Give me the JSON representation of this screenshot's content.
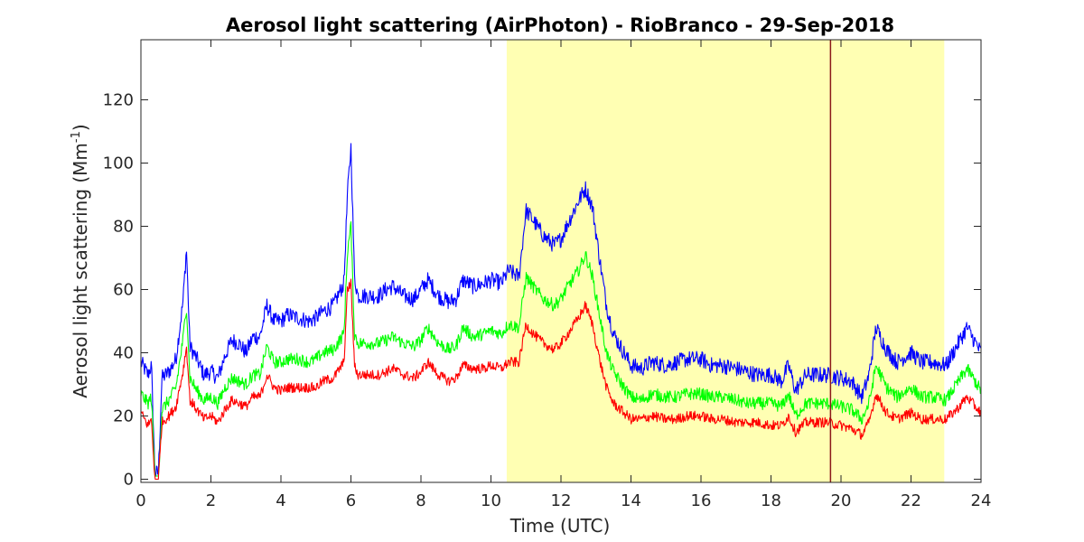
{
  "chart_data": {
    "type": "line",
    "title": "Aerosol light scattering (AirPhoton) - RioBranco - 29-Sep-2018",
    "xlabel": "Time (UTC)",
    "ylabel_main": "Aerosol light scattering (Mm",
    "ylabel_sup": "-1",
    "ylabel_end": ")",
    "xlim": [
      0,
      24
    ],
    "ylim": [
      -1,
      139
    ],
    "xticks": [
      0,
      2,
      4,
      6,
      8,
      10,
      12,
      14,
      16,
      18,
      20,
      22,
      24
    ],
    "yticks": [
      0,
      20,
      40,
      60,
      80,
      100,
      120
    ],
    "grid": false,
    "highlight_band": {
      "x_start": 10.45,
      "x_end": 22.95,
      "color": "#ffffb3"
    },
    "vertical_marker": {
      "x": 19.7,
      "color": "#8b1a1a"
    },
    "series_colors": {
      "blue": "#0000ff",
      "green": "#00ff00",
      "red": "#ff0000"
    },
    "x": [
      0,
      0.2,
      0.3,
      0.4,
      0.5,
      0.6,
      0.8,
      1.0,
      1.2,
      1.3,
      1.4,
      1.6,
      1.8,
      2.0,
      2.2,
      2.4,
      2.6,
      2.8,
      3.0,
      3.2,
      3.4,
      3.6,
      3.8,
      4.0,
      4.2,
      4.5,
      4.8,
      5.0,
      5.2,
      5.5,
      5.8,
      5.9,
      6.0,
      6.1,
      6.2,
      6.5,
      6.8,
      7.0,
      7.2,
      7.5,
      7.8,
      8.0,
      8.2,
      8.5,
      8.8,
      9.0,
      9.2,
      9.5,
      9.8,
      10.0,
      10.3,
      10.5,
      10.8,
      11.0,
      11.2,
      11.5,
      11.8,
      12.0,
      12.2,
      12.5,
      12.7,
      12.9,
      13.1,
      13.3,
      13.5,
      13.8,
      14.0,
      14.3,
      14.6,
      15.0,
      15.3,
      15.6,
      16.0,
      16.3,
      16.6,
      17.0,
      17.3,
      17.6,
      18.0,
      18.3,
      18.5,
      18.7,
      19.0,
      19.3,
      19.6,
      20.0,
      20.3,
      20.6,
      20.8,
      21.0,
      21.3,
      21.6,
      22.0,
      22.3,
      22.6,
      23.0,
      23.3,
      23.6,
      24.0
    ],
    "series": [
      {
        "values": [
          37,
          33,
          36,
          2,
          2,
          32,
          34,
          38,
          56,
          73,
          42,
          38,
          33,
          34,
          32,
          39,
          44,
          43,
          40,
          45,
          45,
          55,
          50,
          50,
          52,
          51,
          50,
          51,
          53,
          55,
          62,
          90,
          105,
          64,
          58,
          58,
          58,
          60,
          61,
          58,
          57,
          60,
          63,
          58,
          56,
          57,
          63,
          61,
          62,
          63,
          62,
          66,
          64,
          85,
          82,
          77,
          74,
          76,
          81,
          88,
          92,
          86,
          70,
          55,
          46,
          40,
          36,
          35,
          37,
          36,
          37,
          38,
          38,
          36,
          36,
          35,
          34,
          33,
          33,
          31,
          36,
          28,
          33,
          33,
          33,
          32,
          31,
          26,
          33,
          48,
          41,
          37,
          40,
          37,
          37,
          36,
          42,
          48,
          40
        ]
      },
      {
        "values": [
          27,
          24,
          26,
          1,
          1,
          22,
          25,
          29,
          44,
          55,
          32,
          28,
          25,
          26,
          24,
          29,
          32,
          31,
          30,
          33,
          33,
          42,
          37,
          37,
          38,
          38,
          37,
          38,
          40,
          41,
          46,
          72,
          80,
          46,
          43,
          43,
          43,
          44,
          45,
          43,
          42,
          44,
          48,
          43,
          41,
          42,
          48,
          45,
          46,
          47,
          46,
          49,
          48,
          64,
          61,
          57,
          55,
          57,
          61,
          66,
          71,
          64,
          52,
          40,
          34,
          29,
          26,
          25,
          27,
          26,
          26,
          27,
          27,
          26,
          26,
          25,
          24,
          24,
          24,
          23,
          27,
          20,
          24,
          24,
          24,
          23,
          22,
          19,
          24,
          36,
          29,
          26,
          29,
          26,
          26,
          25,
          30,
          35,
          28
        ]
      },
      {
        "values": [
          21,
          17,
          19,
          0,
          0,
          18,
          20,
          23,
          34,
          42,
          25,
          22,
          19,
          20,
          18,
          22,
          25,
          24,
          23,
          26,
          26,
          33,
          29,
          28,
          29,
          29,
          29,
          29,
          31,
          32,
          37,
          60,
          62,
          36,
          33,
          33,
          33,
          34,
          35,
          33,
          32,
          34,
          37,
          33,
          31,
          32,
          36,
          35,
          35,
          36,
          35,
          37,
          37,
          49,
          46,
          43,
          41,
          43,
          46,
          51,
          55,
          49,
          38,
          29,
          24,
          21,
          19,
          19,
          20,
          19,
          19,
          20,
          20,
          19,
          19,
          18,
          18,
          18,
          17,
          17,
          20,
          15,
          18,
          18,
          18,
          17,
          16,
          14,
          18,
          27,
          21,
          19,
          21,
          19,
          19,
          19,
          22,
          26,
          21
        ]
      }
    ]
  }
}
